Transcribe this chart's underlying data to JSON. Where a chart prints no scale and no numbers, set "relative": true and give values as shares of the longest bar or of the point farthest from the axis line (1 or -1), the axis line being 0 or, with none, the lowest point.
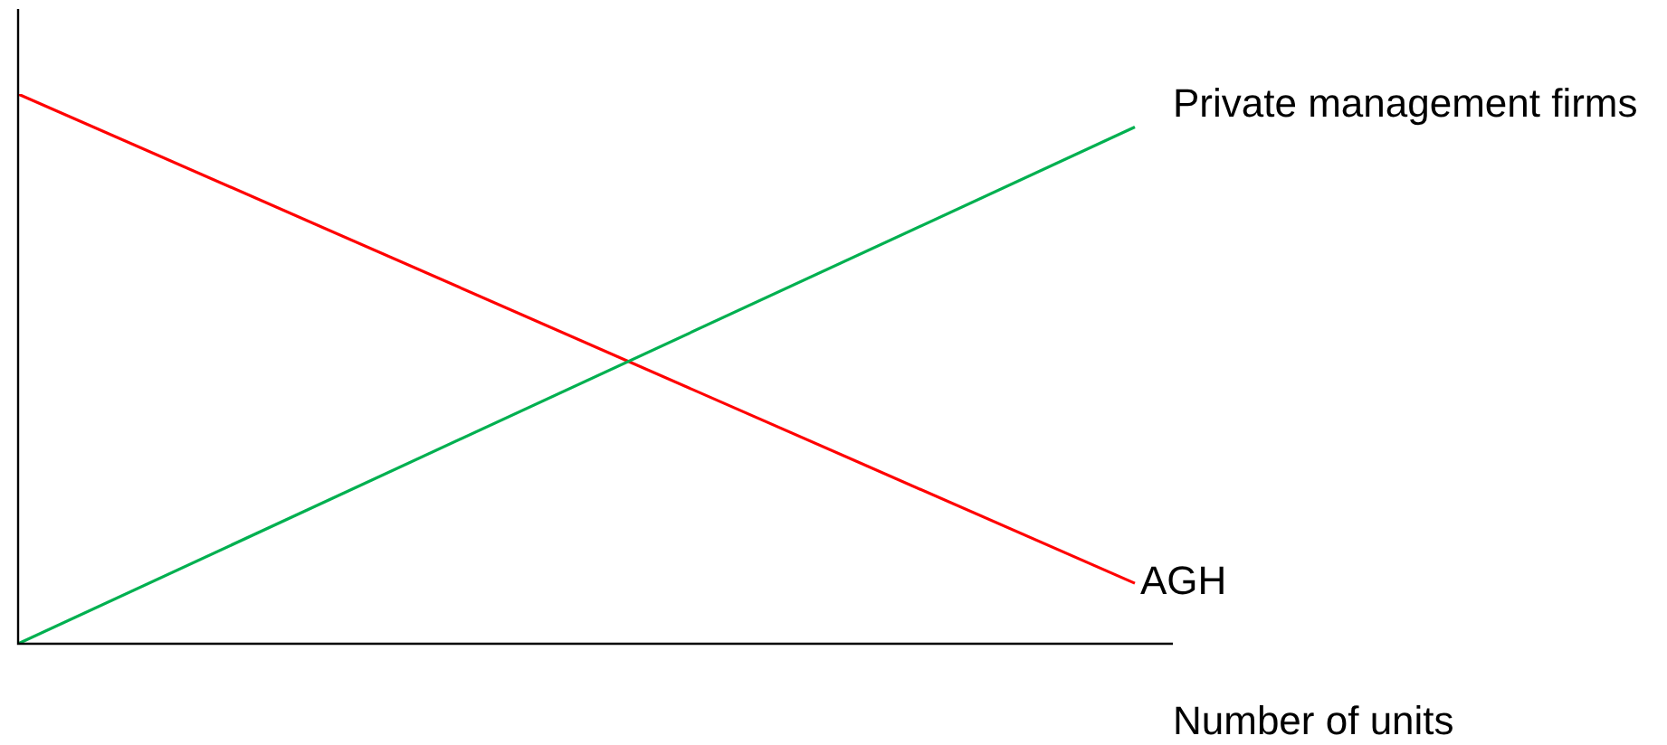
{
  "chart_data": {
    "type": "line",
    "relative": true,
    "xlabel": "Number of units",
    "categories": [
      null,
      null
    ],
    "legend": false,
    "grid": false,
    "marker": "none",
    "line_style": "solid",
    "series": [
      {
        "name": "Private management firms",
        "color": "#00b050",
        "values": [
          0,
          0.94
        ]
      },
      {
        "name": "AGH",
        "color": "#ff0000",
        "values": [
          1,
          0.11
        ]
      }
    ]
  }
}
